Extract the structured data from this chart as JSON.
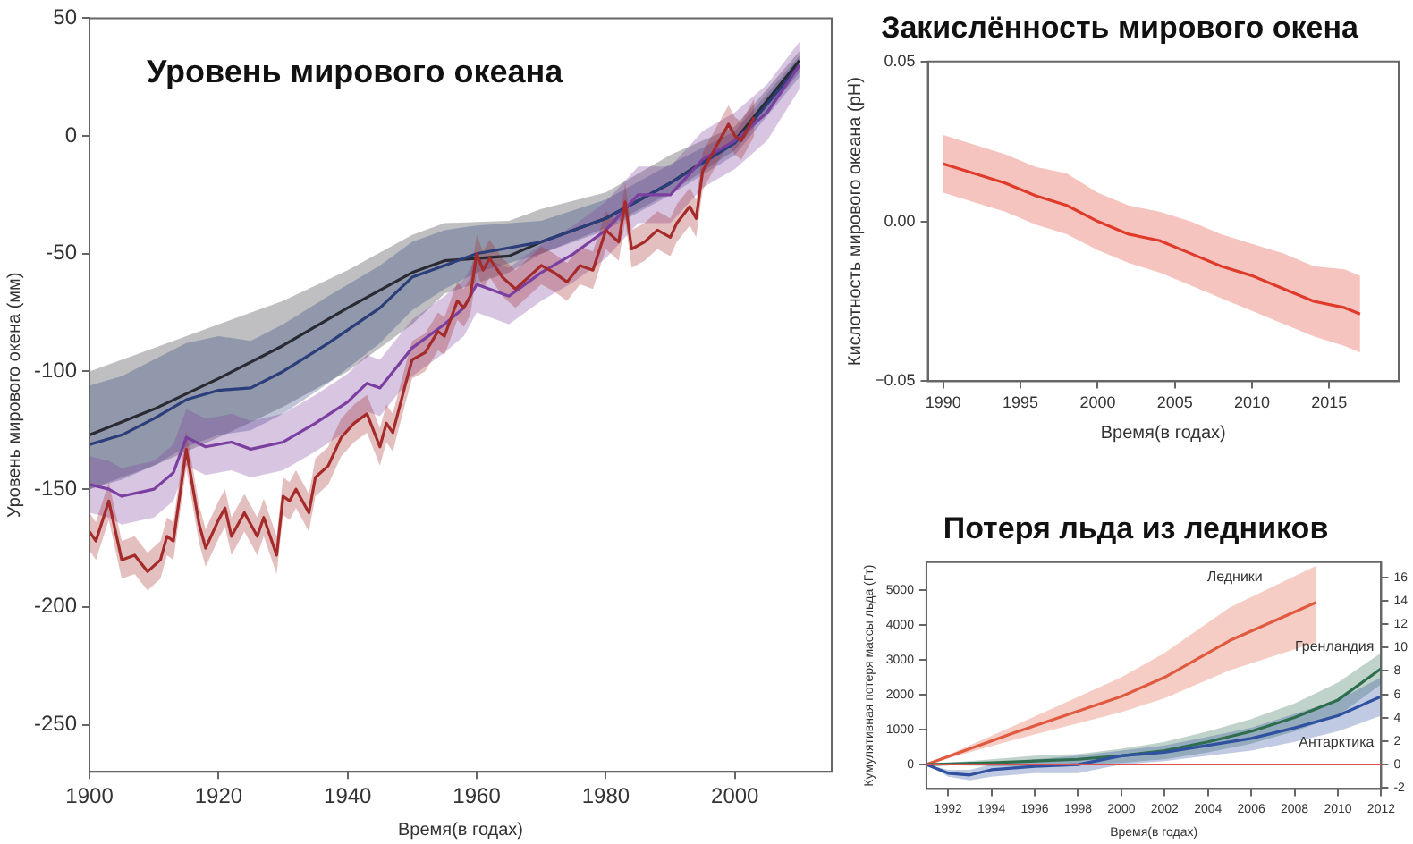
{
  "chart_data": [
    {
      "type": "line",
      "title": "Уровень мирового океана",
      "xlabel": "Время(в годах)",
      "ylabel": "Уровень мирового окена (мм)",
      "xlim": [
        1900,
        2015
      ],
      "xticks": [
        1900,
        1920,
        1940,
        1960,
        1980,
        2000
      ],
      "ylim": [
        -270,
        50
      ],
      "yticks": [
        -250,
        -200,
        -150,
        -100,
        -50,
        0,
        50
      ],
      "grid": false,
      "legend": false,
      "series": [
        {
          "color": "#2a2a33",
          "x": [
            1900,
            1910,
            1920,
            1930,
            1940,
            1950,
            1955,
            1965,
            1970,
            1980,
            1990,
            2000,
            2010
          ],
          "values": [
            -127,
            -116,
            -103,
            -89,
            -73,
            -58,
            -53,
            -51,
            -45,
            -35,
            -20,
            -2,
            32
          ],
          "lower": [
            -150,
            -140,
            -128,
            -115,
            -100,
            -80,
            -67,
            -58,
            -50,
            -39,
            -24,
            -6,
            27
          ],
          "upper": [
            -100,
            -90,
            -80,
            -70,
            -57,
            -42,
            -37,
            -36,
            -31,
            -24,
            -8,
            4,
            36
          ]
        },
        {
          "color": "#2c3e7a",
          "x": [
            1900,
            1905,
            1910,
            1915,
            1920,
            1925,
            1930,
            1937,
            1945,
            1950,
            1955,
            1960,
            1970,
            1980,
            1990,
            2000,
            2010
          ],
          "values": [
            -131,
            -127,
            -120,
            -112,
            -108,
            -107,
            -100,
            -88,
            -73,
            -60,
            -55,
            -50,
            -45,
            -35,
            -20,
            -3,
            30
          ],
          "lower": [
            -150,
            -146,
            -140,
            -132,
            -127,
            -125,
            -118,
            -105,
            -88,
            -74,
            -65,
            -58,
            -50,
            -40,
            -25,
            -8,
            25
          ],
          "upper": [
            -106,
            -102,
            -95,
            -88,
            -85,
            -87,
            -80,
            -68,
            -55,
            -45,
            -40,
            -38,
            -36,
            -27,
            -12,
            2,
            34
          ]
        },
        {
          "color": "#7b3fa0",
          "x": [
            1900,
            1903,
            1905,
            1910,
            1913,
            1915,
            1918,
            1922,
            1925,
            1930,
            1935,
            1940,
            1943,
            1945,
            1950,
            1955,
            1958,
            1960,
            1965,
            1970,
            1975,
            1980,
            1985,
            1990,
            1995,
            2000,
            2005,
            2010
          ],
          "values": [
            -148,
            -150,
            -153,
            -150,
            -143,
            -128,
            -132,
            -130,
            -133,
            -130,
            -122,
            -113,
            -105,
            -107,
            -90,
            -80,
            -73,
            -63,
            -68,
            -58,
            -50,
            -40,
            -25,
            -25,
            -10,
            -2,
            10,
            30
          ],
          "lower": [
            -160,
            -162,
            -165,
            -162,
            -155,
            -140,
            -144,
            -142,
            -145,
            -142,
            -134,
            -125,
            -117,
            -119,
            -102,
            -92,
            -85,
            -75,
            -80,
            -70,
            -62,
            -52,
            -37,
            -37,
            -22,
            -14,
            -2,
            20
          ],
          "upper": [
            -136,
            -138,
            -141,
            -138,
            -131,
            -116,
            -120,
            -118,
            -121,
            -118,
            -110,
            -101,
            -93,
            -95,
            -78,
            -68,
            -61,
            -51,
            -56,
            -46,
            -38,
            -28,
            -13,
            -13,
            2,
            10,
            22,
            40
          ]
        },
        {
          "color": "#a52a2a",
          "x": [
            1900,
            1901,
            1903,
            1905,
            1907,
            1909,
            1911,
            1912,
            1913,
            1915,
            1917,
            1918,
            1920,
            1921,
            1922,
            1924,
            1926,
            1927,
            1929,
            1930,
            1931,
            1932,
            1934,
            1935,
            1937,
            1939,
            1941,
            1943,
            1945,
            1946,
            1947,
            1949,
            1950,
            1952,
            1954,
            1955,
            1957,
            1958,
            1959,
            1960,
            1961,
            1962,
            1964,
            1966,
            1968,
            1970,
            1972,
            1974,
            1976,
            1978,
            1980,
            1982,
            1983,
            1984,
            1986,
            1988,
            1990,
            1991,
            1993,
            1994,
            1995,
            1997,
            1999,
            2000,
            2001,
            2003
          ],
          "values": [
            -168,
            -172,
            -155,
            -180,
            -178,
            -185,
            -180,
            -170,
            -172,
            -133,
            -165,
            -175,
            -163,
            -158,
            -170,
            -160,
            -170,
            -162,
            -178,
            -153,
            -155,
            -150,
            -160,
            -145,
            -140,
            -128,
            -122,
            -118,
            -132,
            -122,
            -126,
            -105,
            -95,
            -92,
            -83,
            -85,
            -70,
            -73,
            -68,
            -50,
            -57,
            -52,
            -60,
            -65,
            -60,
            -55,
            -58,
            -62,
            -55,
            -57,
            -40,
            -45,
            -28,
            -48,
            -45,
            -40,
            -43,
            -37,
            -30,
            -35,
            -15,
            -5,
            5,
            0,
            -2,
            8
          ],
          "lower": [
            -176,
            -180,
            -163,
            -188,
            -186,
            -193,
            -188,
            -178,
            -180,
            -141,
            -173,
            -183,
            -171,
            -166,
            -178,
            -168,
            -178,
            -170,
            -186,
            -161,
            -163,
            -158,
            -168,
            -153,
            -148,
            -136,
            -130,
            -126,
            -140,
            -130,
            -134,
            -113,
            -103,
            -100,
            -91,
            -93,
            -78,
            -81,
            -76,
            -58,
            -65,
            -60,
            -68,
            -73,
            -68,
            -63,
            -66,
            -70,
            -63,
            -65,
            -48,
            -53,
            -36,
            -56,
            -53,
            -48,
            -51,
            -45,
            -38,
            -43,
            -23,
            -13,
            -3,
            -8,
            -10,
            0
          ],
          "upper": [
            -160,
            -164,
            -147,
            -172,
            -170,
            -177,
            -172,
            -162,
            -164,
            -125,
            -157,
            -167,
            -155,
            -150,
            -162,
            -152,
            -162,
            -154,
            -170,
            -145,
            -147,
            -142,
            -152,
            -137,
            -132,
            -120,
            -114,
            -110,
            -124,
            -114,
            -118,
            -97,
            -87,
            -84,
            -75,
            -77,
            -62,
            -65,
            -60,
            -42,
            -49,
            -44,
            -52,
            -57,
            -52,
            -47,
            -50,
            -54,
            -47,
            -49,
            -32,
            -37,
            -20,
            -40,
            -37,
            -32,
            -35,
            -29,
            -22,
            -27,
            -7,
            3,
            13,
            8,
            6,
            16
          ]
        }
      ]
    },
    {
      "type": "line",
      "title": "Закислённость мирового окена",
      "xlabel": "Время(в годах)",
      "ylabel": "Кислотность мирового океана (pH)",
      "xlim": [
        1989,
        2019.5
      ],
      "xticks": [
        1990,
        1995,
        2000,
        2005,
        2010,
        2015
      ],
      "ylim": [
        -0.05,
        0.05
      ],
      "yticks": [
        {
          "value": -0.05,
          "label": "−0.05"
        },
        {
          "value": 0,
          "label": "0.00"
        },
        {
          "value": 0.05,
          "label": "0.05"
        }
      ],
      "grid": false,
      "legend": false,
      "series": [
        {
          "color": "#e03a2a",
          "x": [
            1990,
            1992,
            1994,
            1996,
            1998,
            2000,
            2002,
            2004,
            2006,
            2008,
            2010,
            2012,
            2014,
            2016,
            2017
          ],
          "values": [
            0.018,
            0.015,
            0.012,
            0.008,
            0.005,
            0.0,
            -0.004,
            -0.006,
            -0.01,
            -0.014,
            -0.017,
            -0.021,
            -0.025,
            -0.027,
            -0.029
          ],
          "lower": [
            0.009,
            0.006,
            0.003,
            -0.001,
            -0.004,
            -0.009,
            -0.013,
            -0.016,
            -0.02,
            -0.024,
            -0.028,
            -0.032,
            -0.036,
            -0.039,
            -0.041
          ],
          "upper": [
            0.027,
            0.024,
            0.021,
            0.017,
            0.015,
            0.009,
            0.005,
            0.003,
            0.0,
            -0.004,
            -0.007,
            -0.01,
            -0.014,
            -0.015,
            -0.017
          ]
        }
      ]
    },
    {
      "type": "line",
      "title": "Потеря льда из ледников",
      "xlabel": "Время(в годах)",
      "ylabel": "Кумулятивная потеря массы льда (Гт)",
      "xlim": [
        1991,
        2012
      ],
      "xticks": [
        1992,
        1994,
        1996,
        1998,
        2000,
        2002,
        2004,
        2006,
        2008,
        2010,
        2012
      ],
      "ylim": [
        -700,
        5800
      ],
      "yticks": [
        0,
        1000,
        2000,
        3000,
        4000,
        5000
      ],
      "y2lim": [
        -2.08,
        17.3
      ],
      "y2ticks": [
        -2,
        0,
        2,
        4,
        6,
        8,
        10,
        12,
        14,
        16
      ],
      "grid": false,
      "legend": false,
      "ref_lines": [
        {
          "axis": "y",
          "value": 0,
          "color": "#e05050"
        }
      ],
      "series": [
        {
          "name": "Ледники",
          "color": "#e05a40",
          "x": [
            1991,
            1995,
            2000,
            2002,
            2005,
            2009
          ],
          "values": [
            0,
            900,
            1950,
            2500,
            3550,
            4650
          ],
          "lower": [
            0,
            700,
            1500,
            1900,
            2700,
            3500
          ],
          "upper": [
            0,
            1100,
            2500,
            3200,
            4500,
            5700
          ]
        },
        {
          "name": "Гренландия",
          "color": "#2e6e4e",
          "x": [
            1991,
            1994,
            1996,
            1998,
            2000,
            2002,
            2004,
            2006,
            2008,
            2010,
            2012
          ],
          "values": [
            0,
            50,
            100,
            150,
            250,
            400,
            650,
            950,
            1350,
            1850,
            2750
          ],
          "lower": [
            0,
            -50,
            -50,
            0,
            50,
            150,
            350,
            600,
            950,
            1400,
            2300
          ],
          "upper": [
            0,
            150,
            250,
            300,
            450,
            650,
            950,
            1300,
            1750,
            2350,
            3200
          ]
        },
        {
          "name": "Антарктика",
          "color": "#3050a0",
          "x": [
            1991,
            1992,
            1993,
            1994,
            1996,
            1998,
            2000,
            2002,
            2004,
            2006,
            2008,
            2010,
            2012
          ],
          "values": [
            0,
            -250,
            -300,
            -150,
            -50,
            0,
            250,
            350,
            550,
            750,
            1050,
            1400,
            1950
          ],
          "lower": [
            0,
            -350,
            -450,
            -350,
            -250,
            -250,
            0,
            100,
            250,
            400,
            650,
            950,
            1400
          ],
          "upper": [
            0,
            -150,
            -150,
            0,
            150,
            250,
            400,
            550,
            800,
            1050,
            1450,
            1850,
            2500
          ]
        }
      ]
    }
  ]
}
